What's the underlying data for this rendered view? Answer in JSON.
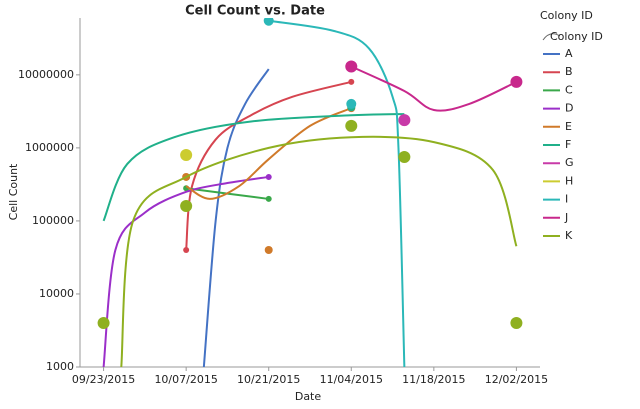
{
  "chart_data": {
    "type": "line",
    "title": "Cell Count vs. Date",
    "x_label": "Date",
    "y_label": "Cell Count",
    "legend_title": "Colony ID",
    "legend_subtitle": "Colony ID",
    "log_y": true,
    "xlim": [
      "2015-09-19",
      "2015-12-06"
    ],
    "xticks": [
      {
        "value": "2015-09-23",
        "label": "09/23/2015"
      },
      {
        "value": "2015-10-07",
        "label": "10/07/2015"
      },
      {
        "value": "2015-10-21",
        "label": "10/21/2015"
      },
      {
        "value": "2015-11-04",
        "label": "11/04/2015"
      },
      {
        "value": "2015-11-18",
        "label": "11/18/2015"
      },
      {
        "value": "2015-12-02",
        "label": "12/02/2015"
      }
    ],
    "ylim": [
      1000,
      60000000
    ],
    "yticks": [
      1000,
      10000,
      100000,
      1000000,
      10000000
    ],
    "series": [
      {
        "name": "A",
        "color": "#4472c4",
        "marker_r": 3,
        "x": [
          "2015-10-10",
          "2015-10-12",
          "2015-10-14",
          "2015-10-17",
          "2015-10-21"
        ],
        "values": [
          1000,
          100000,
          1000000,
          4000000,
          12000000
        ],
        "marker_x": [],
        "marker_values": []
      },
      {
        "name": "B",
        "color": "#d64550",
        "marker_r": 3,
        "x": [
          "2015-10-07",
          "2015-10-08",
          "2015-10-12",
          "2015-10-18",
          "2015-10-25",
          "2015-11-04"
        ],
        "values": [
          40000,
          300000,
          1300000,
          2800000,
          5000000,
          8000000
        ],
        "marker_x": [
          "2015-10-07",
          "2015-11-04"
        ],
        "marker_values": [
          40000,
          8000000
        ]
      },
      {
        "name": "C",
        "color": "#3aa84a",
        "marker_r": 3,
        "x": [
          "2015-10-07",
          "2015-10-21"
        ],
        "values": [
          280000,
          200000
        ],
        "marker_x": [
          "2015-10-07",
          "2015-10-21"
        ],
        "marker_values": [
          280000,
          200000
        ]
      },
      {
        "name": "D",
        "color": "#9b2fc9",
        "marker_r": 3,
        "x": [
          "2015-09-23",
          "2015-09-25",
          "2015-09-30",
          "2015-10-07",
          "2015-10-14",
          "2015-10-21"
        ],
        "values": [
          1000,
          40000,
          130000,
          250000,
          330000,
          400000
        ],
        "marker_x": [
          "2015-10-21"
        ],
        "marker_values": [
          400000
        ]
      },
      {
        "name": "E",
        "color": "#d07a2a",
        "marker_r": 4,
        "x": [
          "2015-10-07",
          "2015-10-11",
          "2015-10-16",
          "2015-10-21",
          "2015-10-28",
          "2015-11-04"
        ],
        "values": [
          300000,
          200000,
          300000,
          700000,
          2000000,
          3500000
        ],
        "marker_x": [
          "2015-10-07",
          "2015-10-21",
          "2015-11-04"
        ],
        "marker_values": [
          400000,
          40000,
          3500000
        ]
      },
      {
        "name": "F",
        "color": "#20b08a",
        "marker_r": 4,
        "x": [
          "2015-09-23",
          "2015-09-27",
          "2015-10-05",
          "2015-10-18",
          "2015-11-04",
          "2015-11-13"
        ],
        "values": [
          100000,
          600000,
          1400000,
          2300000,
          2800000,
          2900000
        ],
        "marker_x": [
          "2015-11-04"
        ],
        "marker_values": [
          3600000
        ]
      },
      {
        "name": "G",
        "color": "#c83aa8",
        "marker_r": 6,
        "x": [],
        "values": [],
        "marker_x": [
          "2015-11-13"
        ],
        "marker_values": [
          2400000
        ]
      },
      {
        "name": "H",
        "color": "#cccc30",
        "marker_r": 6,
        "x": [],
        "values": [],
        "marker_x": [
          "2015-10-07"
        ],
        "marker_values": [
          800000
        ]
      },
      {
        "name": "I",
        "color": "#2bb8b8",
        "marker_r": 5,
        "x": [
          "2015-10-21",
          "2015-11-01",
          "2015-11-07",
          "2015-11-11",
          "2015-11-12",
          "2015-11-13"
        ],
        "values": [
          55000000,
          40000000,
          23000000,
          5000000,
          1000000,
          1000
        ],
        "marker_x": [
          "2015-10-21",
          "2015-11-04"
        ],
        "marker_values": [
          55000000,
          4000000
        ]
      },
      {
        "name": "J",
        "color": "#c8288c",
        "marker_r": 6,
        "x": [
          "2015-11-04",
          "2015-11-13",
          "2015-11-18",
          "2015-11-24",
          "2015-12-02"
        ],
        "values": [
          13000000,
          6000000,
          3300000,
          4000000,
          8000000
        ],
        "marker_x": [
          "2015-11-04",
          "2015-12-02"
        ],
        "marker_values": [
          13000000,
          8000000
        ]
      },
      {
        "name": "K",
        "color": "#8fb020",
        "marker_r": 6,
        "x": [
          "2015-09-26",
          "2015-09-28",
          "2015-10-07",
          "2015-10-21",
          "2015-11-04",
          "2015-11-18",
          "2015-11-28",
          "2015-12-02"
        ],
        "values": [
          1000,
          100000,
          400000,
          1000000,
          1400000,
          1200000,
          500000,
          45000
        ],
        "marker_x": [
          "2015-09-23",
          "2015-10-07",
          "2015-11-04",
          "2015-11-13",
          "2015-12-02"
        ],
        "marker_values": [
          4000,
          160000,
          2000000,
          750000,
          4000
        ]
      }
    ]
  }
}
